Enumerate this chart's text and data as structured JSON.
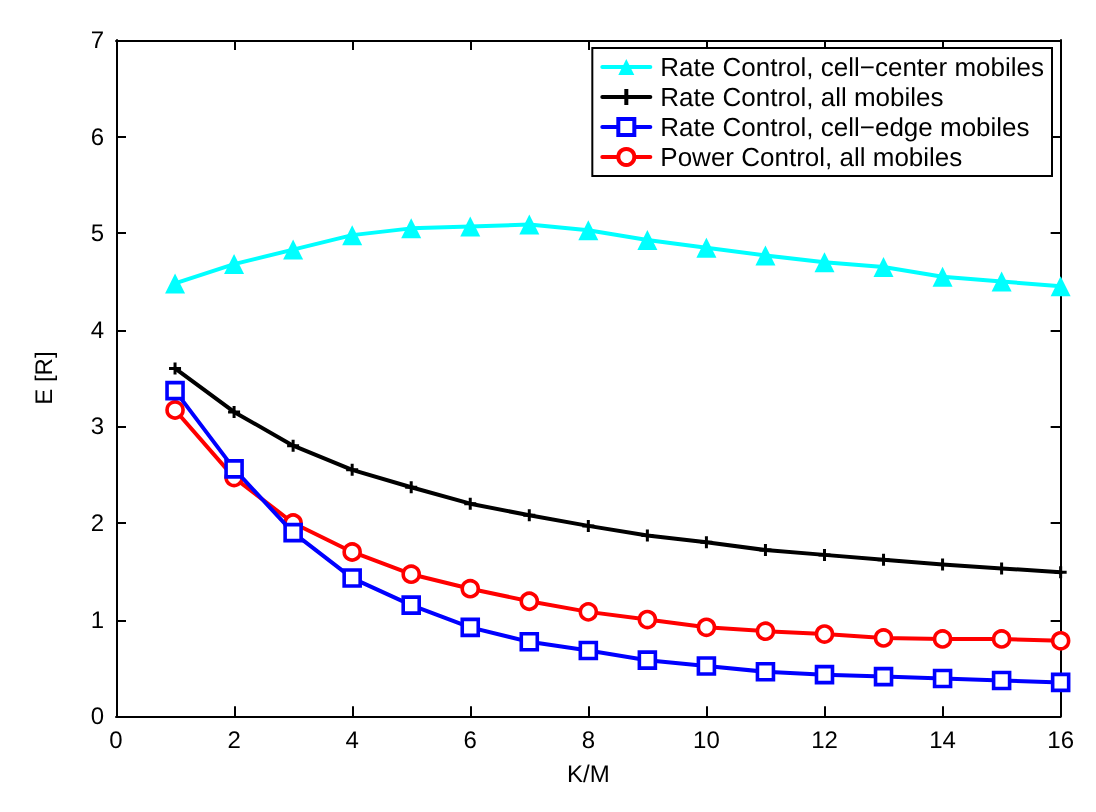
{
  "chart_data": {
    "type": "line",
    "xlabel": "K/M",
    "ylabel": "E [R]",
    "x": [
      1,
      2,
      3,
      4,
      5,
      6,
      7,
      8,
      9,
      10,
      11,
      12,
      13,
      14,
      15,
      16
    ],
    "xlim": [
      0,
      16
    ],
    "xticks": [
      0,
      2,
      4,
      6,
      8,
      10,
      12,
      14,
      16
    ],
    "ylim": [
      0,
      7
    ],
    "yticks": [
      0,
      1,
      2,
      3,
      4,
      5,
      6,
      7
    ],
    "grid": false,
    "legend": "top right",
    "line_style": "solid",
    "series": [
      {
        "name": "Rate Control, cell−center mobiles",
        "color": "#00ffff",
        "marker": "triangle",
        "values": [
          4.48,
          4.68,
          4.83,
          4.98,
          5.05,
          5.07,
          5.09,
          5.03,
          4.93,
          4.85,
          4.77,
          4.7,
          4.65,
          4.55,
          4.5,
          4.45
        ]
      },
      {
        "name": "Rate Control, all mobiles",
        "color": "#000000",
        "marker": "cross",
        "values": [
          3.6,
          3.15,
          2.8,
          2.55,
          2.37,
          2.2,
          2.08,
          1.97,
          1.87,
          1.8,
          1.72,
          1.67,
          1.62,
          1.57,
          1.53,
          1.49
        ]
      },
      {
        "name": "Rate Control, cell−edge mobiles",
        "color": "#0000ff",
        "marker": "square",
        "values": [
          3.37,
          2.56,
          1.9,
          1.43,
          1.15,
          0.92,
          0.77,
          0.68,
          0.58,
          0.52,
          0.46,
          0.43,
          0.41,
          0.39,
          0.37,
          0.35
        ]
      },
      {
        "name": "Power Control, all mobiles",
        "color": "#ff0000",
        "marker": "circle",
        "values": [
          3.17,
          2.47,
          2.0,
          1.7,
          1.47,
          1.32,
          1.19,
          1.08,
          1.0,
          0.92,
          0.88,
          0.85,
          0.81,
          0.8,
          0.8,
          0.78
        ]
      }
    ]
  }
}
